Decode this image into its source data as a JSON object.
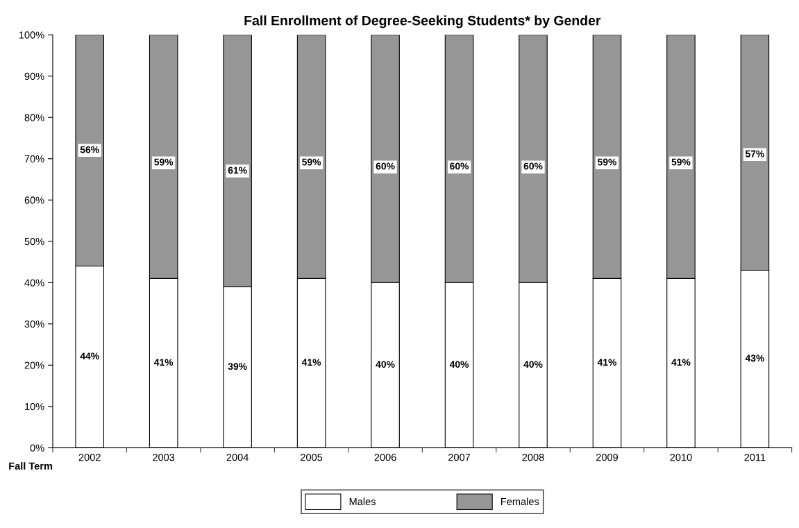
{
  "chart_data": {
    "type": "bar",
    "title": "Fall Enrollment of Degree-Seeking Students* by Gender",
    "xlabel": "Fall Term",
    "categories": [
      "2002",
      "2003",
      "2004",
      "2005",
      "2006",
      "2007",
      "2008",
      "2009",
      "2010",
      "2011"
    ],
    "stacked": true,
    "series": [
      {
        "name": "Males",
        "color": "#ffffff",
        "values": [
          44,
          41,
          39,
          41,
          40,
          40,
          40,
          41,
          41,
          43
        ],
        "value_labels": [
          "44%",
          "41%",
          "39%",
          "41%",
          "40%",
          "40%",
          "40%",
          "41%",
          "41%",
          "43%"
        ]
      },
      {
        "name": "Females",
        "color": "#969696",
        "values": [
          56,
          59,
          61,
          59,
          60,
          60,
          60,
          59,
          59,
          57
        ],
        "value_labels": [
          "56%",
          "59%",
          "61%",
          "59%",
          "60%",
          "60%",
          "60%",
          "59%",
          "59%",
          "57%"
        ]
      }
    ],
    "ylim": [
      0,
      100
    ],
    "yticks": [
      {
        "value": 0,
        "label": "0%"
      },
      {
        "value": 10,
        "label": "10%"
      },
      {
        "value": 20,
        "label": "20%"
      },
      {
        "value": 30,
        "label": "30%"
      },
      {
        "value": 40,
        "label": "40%"
      },
      {
        "value": 50,
        "label": "50%"
      },
      {
        "value": 60,
        "label": "60%"
      },
      {
        "value": 70,
        "label": "70%"
      },
      {
        "value": 80,
        "label": "80%"
      },
      {
        "value": 90,
        "label": "90%"
      },
      {
        "value": 100,
        "label": "100%"
      }
    ],
    "grid": false,
    "legend": "bottom"
  }
}
